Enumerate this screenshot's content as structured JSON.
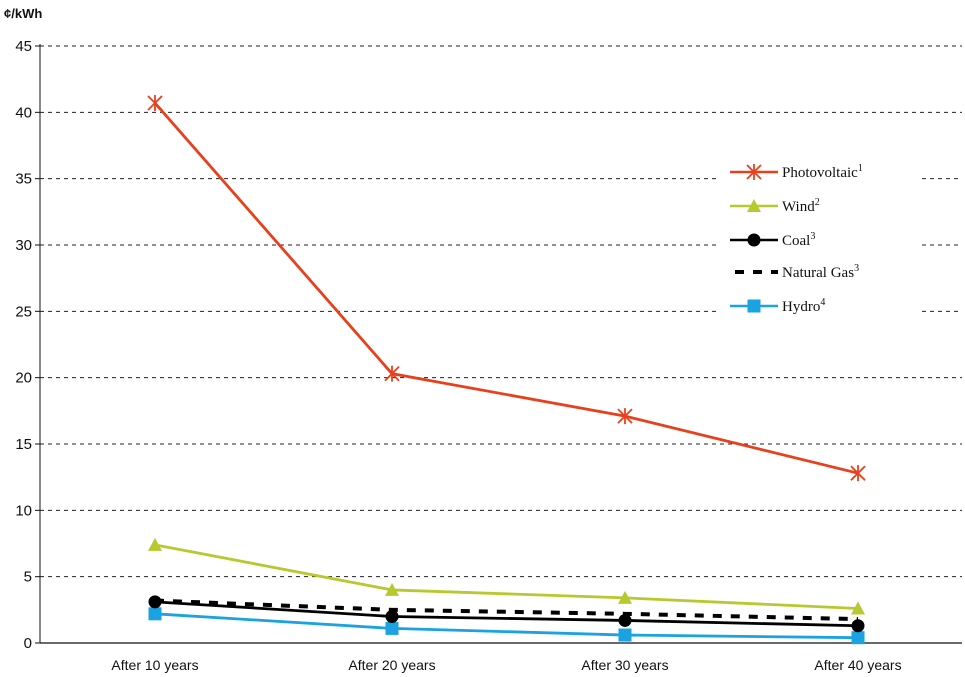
{
  "chart_data": {
    "type": "line",
    "ylabel": "¢/kWh",
    "ylim": [
      0,
      45
    ],
    "yticks": [
      0,
      5,
      10,
      15,
      20,
      25,
      30,
      35,
      40,
      45
    ],
    "categories": [
      "After 10 years",
      "After 20 years",
      "After 30 years",
      "After 40 years"
    ],
    "grid": "horizontal dashed",
    "legend_position": "right",
    "series": [
      {
        "name": "Photovoltaic",
        "sup": "1",
        "color": "#e8401c",
        "marker": "asterisk",
        "dashed": false,
        "values": [
          40.7,
          20.3,
          17.1,
          12.8
        ]
      },
      {
        "name": "Wind",
        "sup": "2",
        "color": "#b8c930",
        "marker": "triangle",
        "dashed": false,
        "values": [
          7.4,
          4.0,
          3.4,
          2.6
        ]
      },
      {
        "name": "Coal",
        "sup": "3",
        "color": "#000000",
        "marker": "circle",
        "dashed": false,
        "values": [
          3.1,
          2.0,
          1.7,
          1.3
        ]
      },
      {
        "name": "Natural Gas",
        "sup": "3",
        "color": "#000000",
        "marker": "none",
        "dashed": true,
        "values": [
          3.2,
          2.5,
          2.2,
          1.8
        ]
      },
      {
        "name": "Hydro",
        "sup": "4",
        "color": "#1aa3e0",
        "marker": "square",
        "dashed": false,
        "values": [
          2.2,
          1.1,
          0.6,
          0.4
        ]
      }
    ]
  }
}
